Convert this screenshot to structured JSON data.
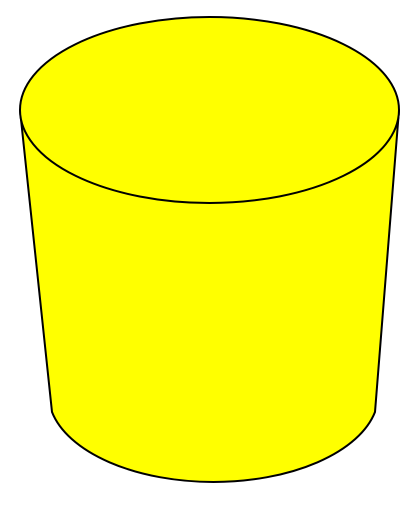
{
  "shape": {
    "type": "frustum-cylinder",
    "colors": {
      "fill": "#ffff00",
      "stroke": "#000000",
      "background": "#ffffff"
    }
  }
}
